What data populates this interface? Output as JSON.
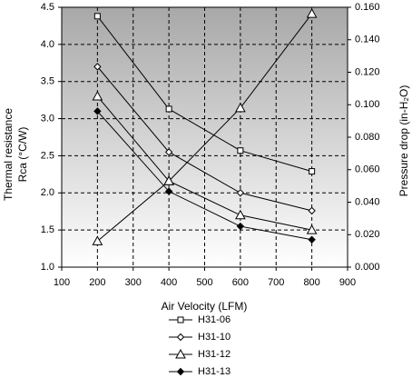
{
  "chart_data": {
    "type": "line",
    "x_label": "Air Velocity (LFM)",
    "y_label": [
      "Thermal resistance",
      "Rca (°C/W)"
    ],
    "y2_label": "Pressure drop (in-H₂O)",
    "x": [
      200,
      400,
      600,
      800
    ],
    "xlim": [
      100,
      900
    ],
    "xticks": [
      100,
      200,
      300,
      400,
      500,
      600,
      700,
      800,
      900
    ],
    "ylim": [
      1,
      4.5
    ],
    "yticks": [
      {
        "value": 1,
        "label": "1.0"
      },
      1.5,
      {
        "value": 2,
        "label": "2.0"
      },
      2.5,
      {
        "value": 3,
        "label": "3.0"
      },
      3.5,
      {
        "value": 4,
        "label": "4.0"
      },
      4.5
    ],
    "y2lim": [
      0,
      0.16
    ],
    "y2ticks": [
      {
        "value": 0,
        "label": "0.000"
      },
      {
        "value": 0.02,
        "label": "0.020"
      },
      {
        "value": 0.04,
        "label": "0.040"
      },
      {
        "value": 0.06,
        "label": "0.060"
      },
      {
        "value": 0.08,
        "label": "0.080"
      },
      {
        "value": 0.1,
        "label": "0.100"
      },
      {
        "value": 0.12,
        "label": "0.120"
      },
      {
        "value": 0.14,
        "label": "0.140"
      },
      {
        "value": 0.16,
        "label": "0.160"
      }
    ],
    "grid": true,
    "legend": "bottom",
    "series": [
      {
        "name": "H31-06",
        "color": "#000000",
        "marker": "square",
        "values": [
          4.38,
          3.13,
          2.57,
          2.29
        ]
      },
      {
        "name": "H31-10",
        "color": "#000000",
        "marker": "diamond-open",
        "values": [
          3.7,
          2.55,
          2.0,
          1.76
        ]
      },
      {
        "name": "H31-12",
        "color": "#000000",
        "marker": "triangle",
        "values": [
          3.3,
          2.16,
          1.7,
          1.5
        ]
      },
      {
        "name": "H31-13",
        "color": "#000000",
        "marker": "diamond",
        "values": [
          3.1,
          2.02,
          1.55,
          1.37
        ]
      },
      {
        "color": "#000000",
        "marker": "triangle",
        "axis": "y2",
        "values": [
          0.016,
          0.053,
          0.098,
          0.156
        ]
      }
    ]
  }
}
